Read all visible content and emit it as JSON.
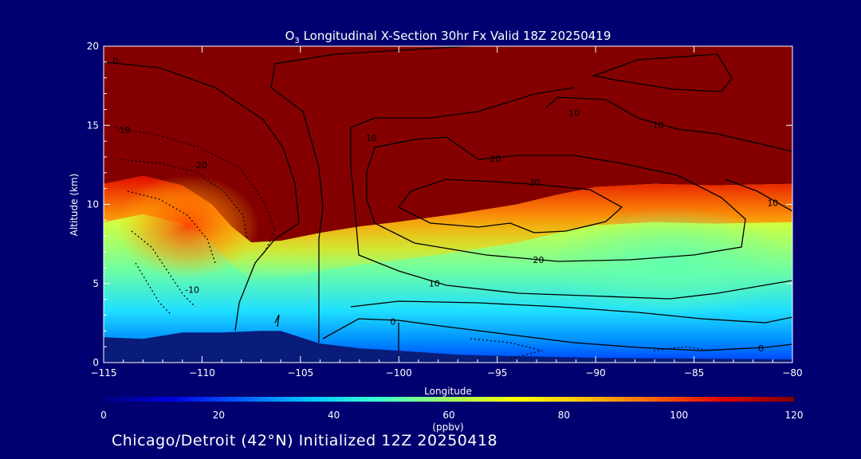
{
  "chart_data": {
    "type": "heatmap",
    "title_prefix": "O",
    "title_subscript": "3",
    "title_rest": " Longitudinal X-Section 30hr  Fx Valid 18Z 20250419",
    "xlabel": "Longitude",
    "ylabel": "Altitude (km)",
    "xlim": [
      -115,
      -80
    ],
    "ylim": [
      0,
      20
    ],
    "x_ticks": [
      -115,
      -110,
      -105,
      -100,
      -95,
      -90,
      -85,
      -80
    ],
    "x_tick_labels": [
      "−115",
      "−110",
      "−105",
      "−100",
      "−95",
      "−90",
      "−85",
      "−80"
    ],
    "y_ticks": [
      0,
      5,
      10,
      15,
      20
    ],
    "y_tick_labels": [
      "0",
      "5",
      "10",
      "15",
      "20"
    ],
    "colorbar": {
      "min": 0,
      "max": 120,
      "ticks": [
        0,
        20,
        40,
        60,
        80,
        100,
        120
      ],
      "tick_labels": [
        "0",
        "20",
        "40",
        "60",
        "80",
        "100",
        "120"
      ],
      "unit_label": "(ppbv)",
      "colors": [
        "#000080",
        "#0000e0",
        "#0060ff",
        "#00c8ff",
        "#40ffd0",
        "#a0ff60",
        "#ffff00",
        "#ffc000",
        "#ff6000",
        "#e00000",
        "#800000"
      ]
    },
    "series": [
      {
        "name": "o3_field",
        "interface_height_km": [
          [
            -115,
            11.3
          ],
          [
            -113,
            11.8
          ],
          [
            -111,
            11.2
          ],
          [
            -109.5,
            10
          ],
          [
            -108.5,
            8.6
          ],
          [
            -107.5,
            7.6
          ],
          [
            -106,
            7.7
          ],
          [
            -104,
            8.2
          ],
          [
            -102,
            8.6
          ],
          [
            -100,
            8.9
          ],
          [
            -97,
            9.4
          ],
          [
            -94,
            10
          ],
          [
            -92,
            10.6
          ],
          [
            -90,
            11.1
          ],
          [
            -87,
            11.3
          ],
          [
            -84,
            11.2
          ],
          [
            -80,
            11.3
          ]
        ],
        "terrain_height_km": [
          [
            -115,
            1.6
          ],
          [
            -113,
            1.5
          ],
          [
            -111,
            1.9
          ],
          [
            -109,
            1.9
          ],
          [
            -107,
            2.0
          ],
          [
            -106,
            2.0
          ],
          [
            -104,
            1.2
          ],
          [
            -102,
            0.9
          ],
          [
            -100,
            0.75
          ],
          [
            -97,
            0.5
          ],
          [
            -94,
            0.4
          ],
          [
            -90,
            0.3
          ],
          [
            -85,
            0.25
          ],
          [
            -80,
            0.2
          ]
        ]
      }
    ],
    "contour_labels": [
      {
        "text": "0",
        "lon": -114.4,
        "alt": 18.9
      },
      {
        "text": "-10",
        "lon": -114.0,
        "alt": 14.5
      },
      {
        "text": "-20",
        "lon": -110.1,
        "alt": 12.3
      },
      {
        "text": "-10",
        "lon": -110.5,
        "alt": 4.4
      },
      {
        "text": "10",
        "lon": -101.4,
        "alt": 14.0
      },
      {
        "text": "20",
        "lon": -95.1,
        "alt": 12.7
      },
      {
        "text": "30",
        "lon": -93.1,
        "alt": 11.2
      },
      {
        "text": "10",
        "lon": -91.1,
        "alt": 15.6
      },
      {
        "text": "-10",
        "lon": -86.9,
        "alt": 14.8
      },
      {
        "text": "20",
        "lon": -92.9,
        "alt": 6.3
      },
      {
        "text": "10",
        "lon": -98.2,
        "alt": 4.8
      },
      {
        "text": "10",
        "lon": -81.0,
        "alt": 9.9
      },
      {
        "text": "0",
        "lon": -100.3,
        "alt": 2.4
      },
      {
        "text": "0",
        "lon": -81.6,
        "alt": 0.7
      }
    ]
  },
  "footer": {
    "text": "Chicago/Detroit (42°N) Initialized 12Z 20250418"
  },
  "colors": {
    "background": "#000070",
    "stratosphere": "#840000",
    "terrain": "#0a1c7a",
    "contour": "#000000"
  }
}
